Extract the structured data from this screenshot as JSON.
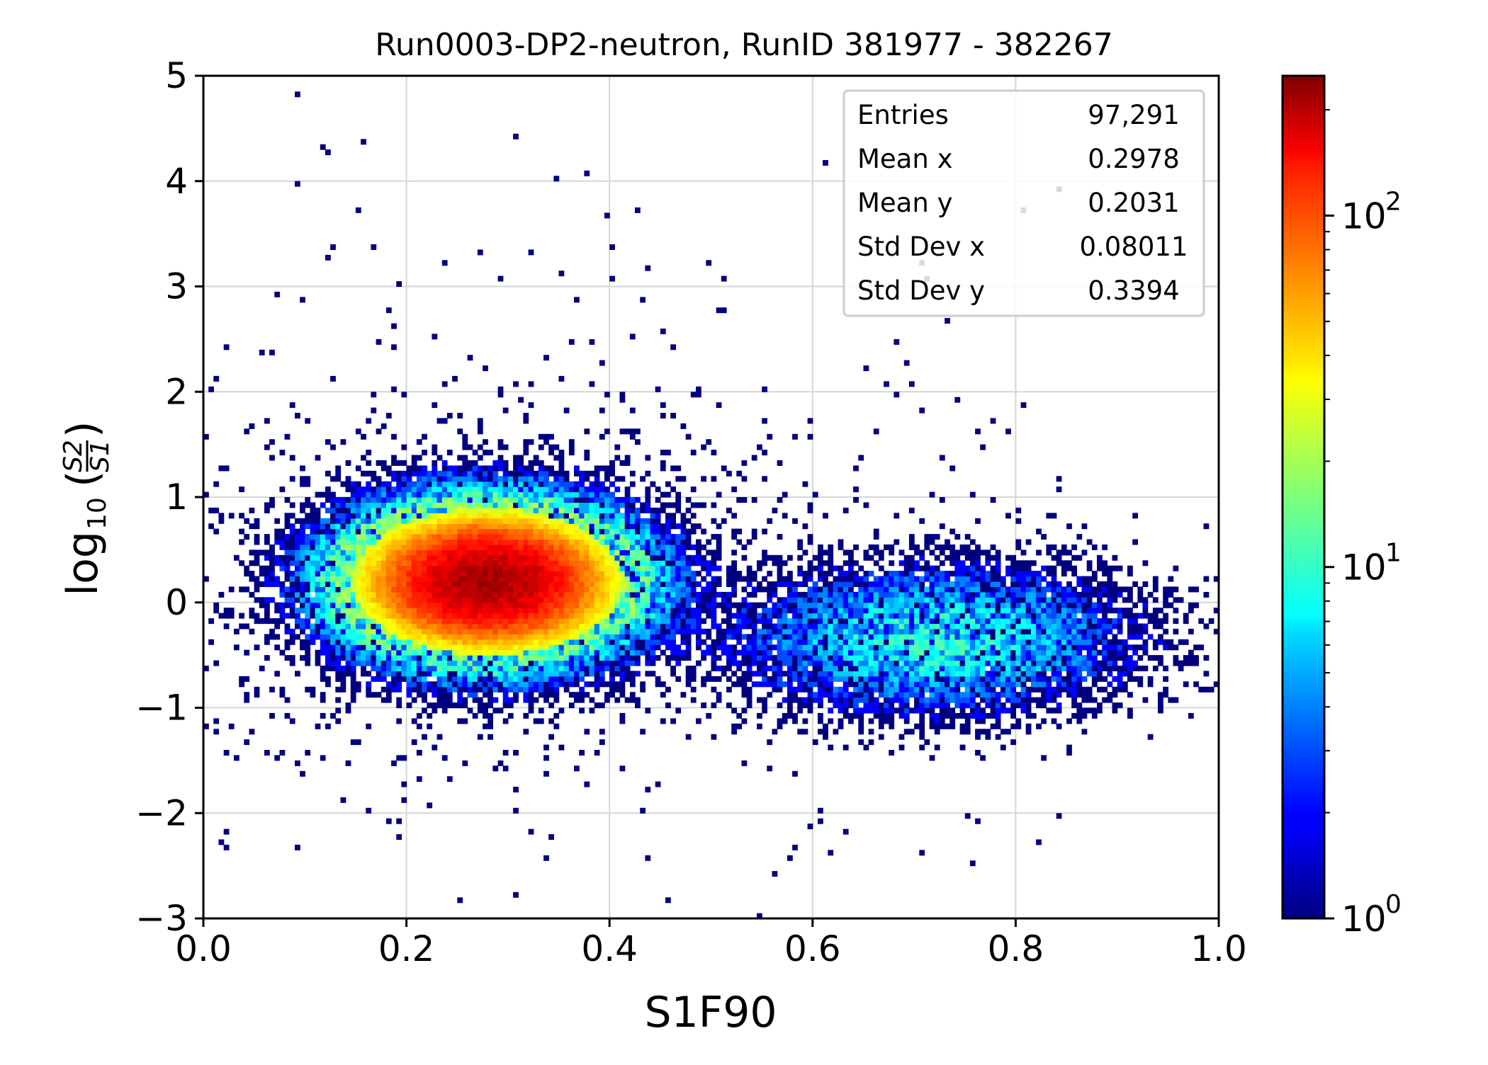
{
  "chart_data": {
    "type": "heatmap",
    "title": "Run0003-DP2-neutron, RunID 381977 - 382267",
    "xlabel": "S1F90",
    "ylabel": {
      "base": "log",
      "sub": "10",
      "open": "(",
      "num": "S2",
      "den": "S1",
      "close": ")"
    },
    "xlim": [
      0.0,
      1.0
    ],
    "ylim": [
      -3,
      5
    ],
    "xticks": [
      "0.0",
      "0.2",
      "0.4",
      "0.6",
      "0.8",
      "1.0"
    ],
    "yticks": [
      "−3",
      "−2",
      "−1",
      "0",
      "1",
      "2",
      "3",
      "4",
      "5"
    ],
    "grid": true,
    "colorscale": "jet",
    "color_scale_type": "log",
    "color_range": [
      1,
      250
    ],
    "colorbar_ticks": [
      {
        "base": "10",
        "exp": "0",
        "value": 1
      },
      {
        "base": "10",
        "exp": "1",
        "value": 10
      },
      {
        "base": "10",
        "exp": "2",
        "value": 100
      }
    ],
    "stats_box": [
      {
        "label": "Entries",
        "value": "97,291"
      },
      {
        "label": "Mean x",
        "value": "0.2978"
      },
      {
        "label": "Mean y",
        "value": "0.2031"
      },
      {
        "label": "Std Dev x",
        "value": "0.08011"
      },
      {
        "label": "Std Dev y",
        "value": "0.3394"
      }
    ],
    "stats_box_placement": "top-right",
    "distribution": {
      "components": [
        {
          "weight": 0.93,
          "mean_x": 0.28,
          "mean_y": 0.2,
          "sd_x": 0.065,
          "sd_y": 0.34
        },
        {
          "weight": 0.07,
          "mean_x": 0.72,
          "mean_y": -0.35,
          "sd_x": 0.1,
          "sd_y": 0.35
        }
      ],
      "peak_count": 230,
      "bin_width_x": 0.005,
      "bin_width_y": 0.05
    }
  }
}
